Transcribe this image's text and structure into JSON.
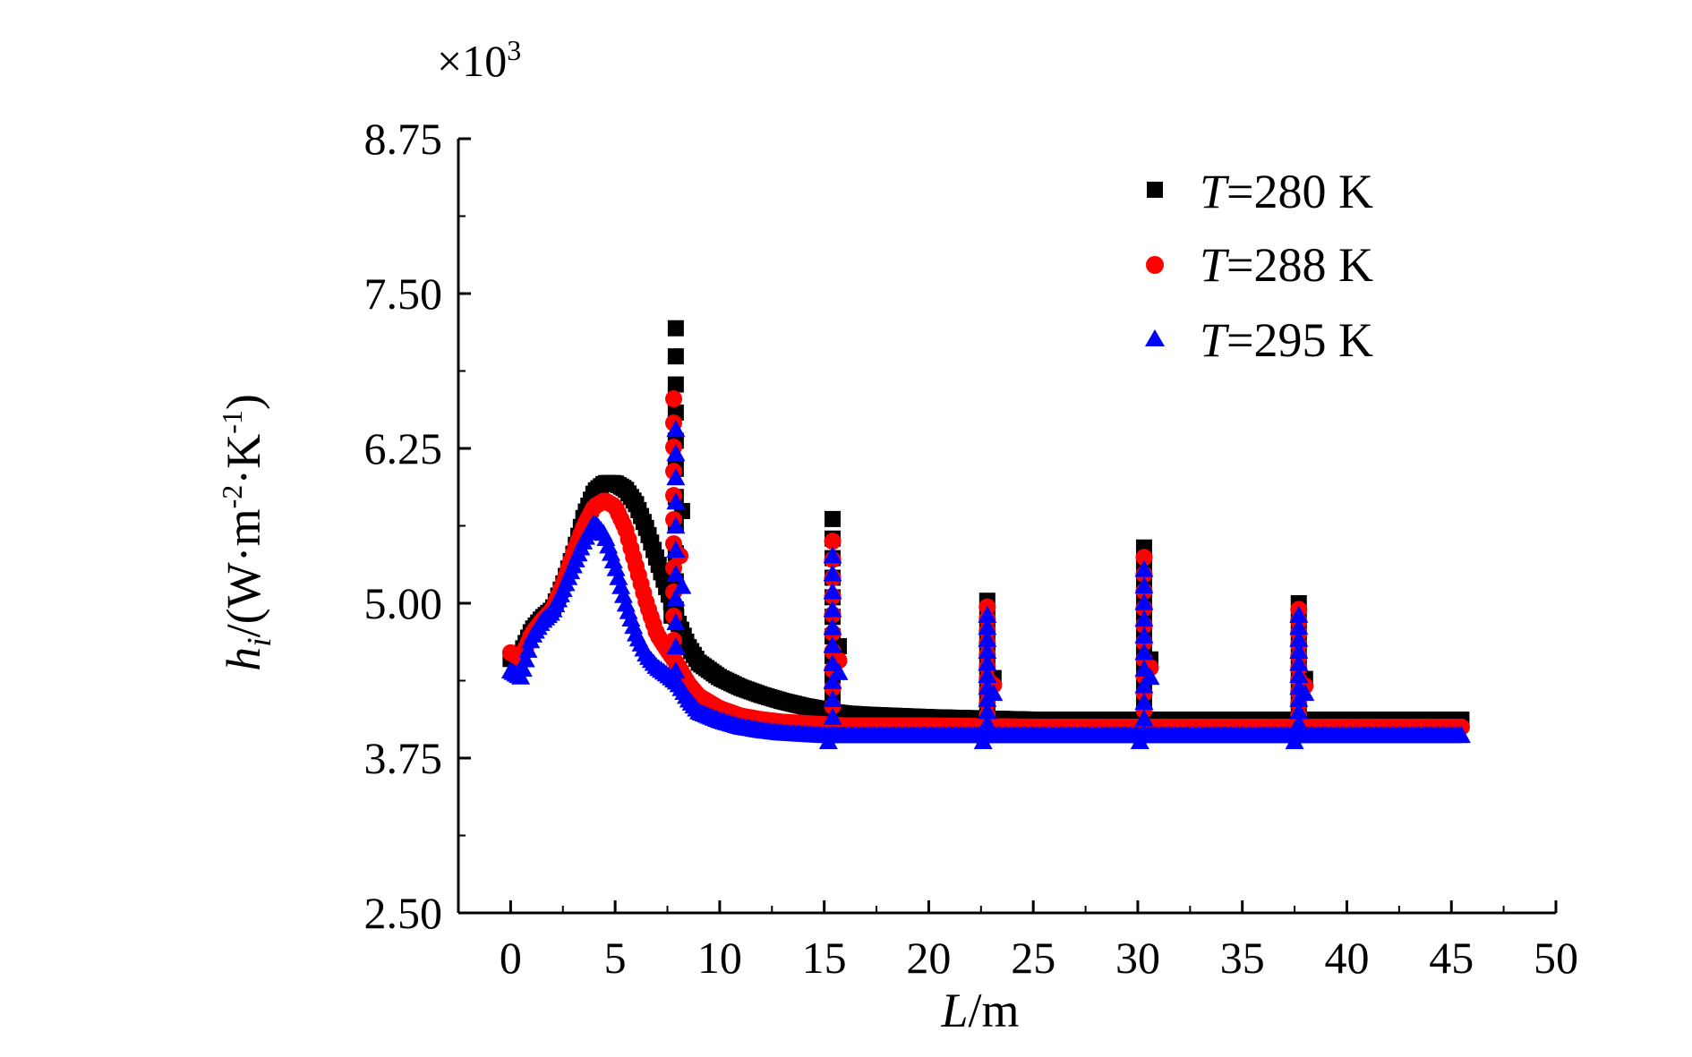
{
  "chart_data": {
    "type": "scatter",
    "title": "",
    "xlabel_symbol": "L",
    "xlabel_unit": "/m",
    "ylabel_symbol": "h",
    "ylabel_sub": "i",
    "ylabel_unit_a": "/(W·m",
    "ylabel_sup_a": "-2",
    "ylabel_unit_b": "·K",
    "ylabel_sup_b": "-1",
    "ylabel_unit_c": ")",
    "multiplier_prefix": "×10",
    "multiplier_exp": "3",
    "xlim": [
      -2.5,
      50
    ],
    "ylim": [
      2.5,
      8.75
    ],
    "x_ticks": [
      0,
      5,
      10,
      15,
      20,
      25,
      30,
      35,
      40,
      45,
      50
    ],
    "x_tick_labels": [
      "0",
      "5",
      "10",
      "15",
      "20",
      "25",
      "30",
      "35",
      "40",
      "45",
      "50"
    ],
    "y_ticks": [
      2.5,
      3.75,
      5.0,
      6.25,
      7.5,
      8.75
    ],
    "y_tick_labels": [
      "2.50",
      "3.75",
      "5.00",
      "6.25",
      "7.50",
      "8.75"
    ],
    "legend_position": "top-right",
    "series": [
      {
        "name": "T=280 K",
        "legend_var": "T",
        "legend_rest": "=280 K",
        "marker": "square",
        "color": "#000000",
        "curve": [
          [
            0,
            4.55
          ],
          [
            0.5,
            4.6
          ],
          [
            1,
            4.78
          ],
          [
            1.5,
            4.88
          ],
          [
            2,
            4.95
          ],
          [
            2.5,
            5.15
          ],
          [
            3,
            5.4
          ],
          [
            3.5,
            5.7
          ],
          [
            4,
            5.9
          ],
          [
            4.5,
            5.97
          ],
          [
            5,
            5.97
          ],
          [
            5.5,
            5.92
          ],
          [
            6,
            5.8
          ],
          [
            6.5,
            5.6
          ],
          [
            7,
            5.35
          ],
          [
            7.5,
            5.1
          ],
          [
            8,
            4.85
          ],
          [
            8.5,
            4.65
          ],
          [
            9,
            4.52
          ],
          [
            10,
            4.4
          ],
          [
            11,
            4.32
          ],
          [
            12,
            4.26
          ],
          [
            13,
            4.21
          ],
          [
            14,
            4.17
          ],
          [
            15,
            4.14
          ],
          [
            15.5,
            4.12
          ],
          [
            16,
            4.11
          ],
          [
            17,
            4.1
          ],
          [
            20,
            4.08
          ],
          [
            25,
            4.06
          ],
          [
            30,
            4.06
          ],
          [
            35,
            4.06
          ],
          [
            40,
            4.06
          ],
          [
            45.5,
            4.06
          ]
        ],
        "spikes": [
          [
            7.9,
            4.95,
            7.22
          ],
          [
            15.4,
            4.1,
            5.68
          ],
          [
            22.8,
            4.06,
            5.02
          ],
          [
            30.3,
            4.06,
            5.45
          ],
          [
            37.7,
            4.06,
            5.0
          ]
        ]
      },
      {
        "name": "T=288 K",
        "legend_var": "T",
        "legend_rest": "=288 K",
        "marker": "circle",
        "color": "#ff0000",
        "curve": [
          [
            0,
            4.6
          ],
          [
            0.5,
            4.55
          ],
          [
            1,
            4.75
          ],
          [
            1.5,
            4.86
          ],
          [
            2,
            4.95
          ],
          [
            2.5,
            5.15
          ],
          [
            3,
            5.4
          ],
          [
            3.5,
            5.62
          ],
          [
            4,
            5.78
          ],
          [
            4.5,
            5.83
          ],
          [
            5,
            5.78
          ],
          [
            5.5,
            5.6
          ],
          [
            6,
            5.3
          ],
          [
            6.5,
            5.0
          ],
          [
            7,
            4.75
          ],
          [
            7.5,
            4.62
          ],
          [
            8,
            4.5
          ],
          [
            8.5,
            4.35
          ],
          [
            9,
            4.25
          ],
          [
            10,
            4.15
          ],
          [
            11,
            4.09
          ],
          [
            12,
            4.06
          ],
          [
            13,
            4.04
          ],
          [
            14,
            4.03
          ],
          [
            15,
            4.02
          ],
          [
            16,
            4.01
          ],
          [
            17,
            4.01
          ],
          [
            20,
            4.01
          ],
          [
            25,
            4.0
          ],
          [
            30,
            4.0
          ],
          [
            35,
            4.0
          ],
          [
            40,
            4.0
          ],
          [
            45.5,
            4.0
          ]
        ],
        "spikes": [
          [
            7.8,
            4.7,
            6.65
          ],
          [
            15.4,
            4.02,
            5.5
          ],
          [
            22.8,
            4.0,
            4.97
          ],
          [
            30.3,
            4.0,
            5.37
          ],
          [
            37.7,
            4.0,
            4.95
          ]
        ]
      },
      {
        "name": "T=295 K",
        "legend_var": "T",
        "legend_rest": "=295 K",
        "marker": "triangle",
        "color": "#0000ff",
        "curve": [
          [
            0,
            4.45
          ],
          [
            0.5,
            4.4
          ],
          [
            1,
            4.72
          ],
          [
            1.5,
            4.85
          ],
          [
            2,
            4.93
          ],
          [
            2.5,
            5.1
          ],
          [
            3,
            5.3
          ],
          [
            3.5,
            5.5
          ],
          [
            4,
            5.65
          ],
          [
            4.5,
            5.55
          ],
          [
            5,
            5.3
          ],
          [
            5.5,
            5.0
          ],
          [
            6,
            4.75
          ],
          [
            6.5,
            4.58
          ],
          [
            7,
            4.48
          ],
          [
            7.5,
            4.42
          ],
          [
            8,
            4.35
          ],
          [
            8.5,
            4.22
          ],
          [
            9,
            4.12
          ],
          [
            10,
            4.05
          ],
          [
            11,
            4.0
          ],
          [
            12,
            3.97
          ],
          [
            13,
            3.95
          ],
          [
            14,
            3.94
          ],
          [
            15,
            3.93
          ],
          [
            16,
            3.93
          ],
          [
            17,
            3.93
          ],
          [
            20,
            3.93
          ],
          [
            25,
            3.93
          ],
          [
            30,
            3.93
          ],
          [
            35,
            3.93
          ],
          [
            40,
            3.93
          ],
          [
            45.5,
            3.93
          ]
        ],
        "spikes": [
          [
            7.9,
            4.45,
            6.4
          ],
          [
            15.4,
            3.93,
            5.38
          ],
          [
            22.8,
            3.93,
            4.9
          ],
          [
            30.3,
            3.93,
            5.27
          ],
          [
            37.7,
            3.93,
            4.9
          ]
        ]
      }
    ]
  }
}
